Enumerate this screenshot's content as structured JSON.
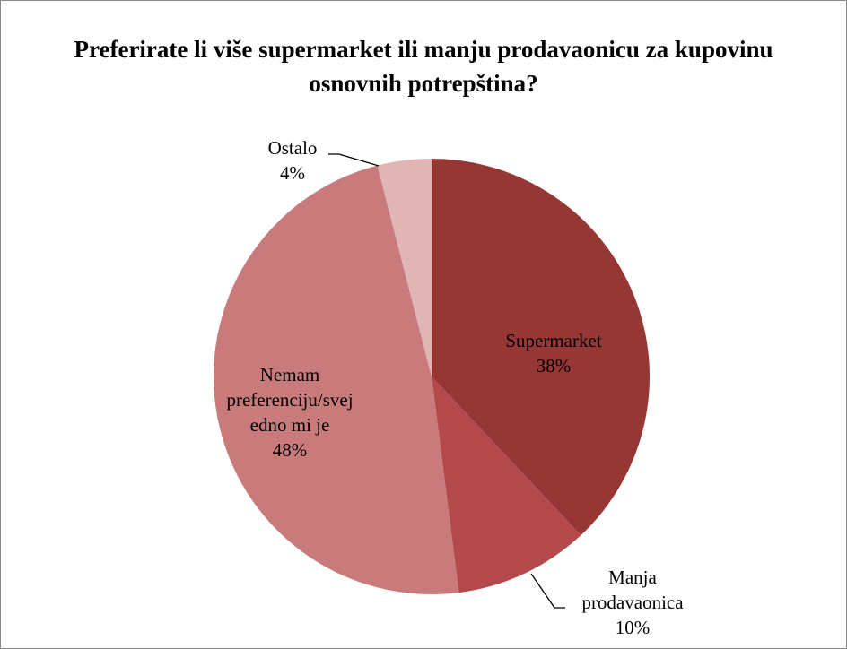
{
  "chart_data": {
    "type": "pie",
    "title": "Preferirate li više supermarket ili manju prodavaonicu za kupovinu osnovnih potrepština?",
    "categories": [
      "Supermarket",
      "Manja prodavaonica",
      "Nemam preferenciju/svejedno mi je",
      "Ostalo"
    ],
    "values": [
      38,
      10,
      48,
      4
    ],
    "value_labels": [
      "38%",
      "10%",
      "48%",
      "4%"
    ],
    "colors": [
      "#953735",
      "#b3494a",
      "#c97b7b",
      "#e0b5b5"
    ]
  }
}
